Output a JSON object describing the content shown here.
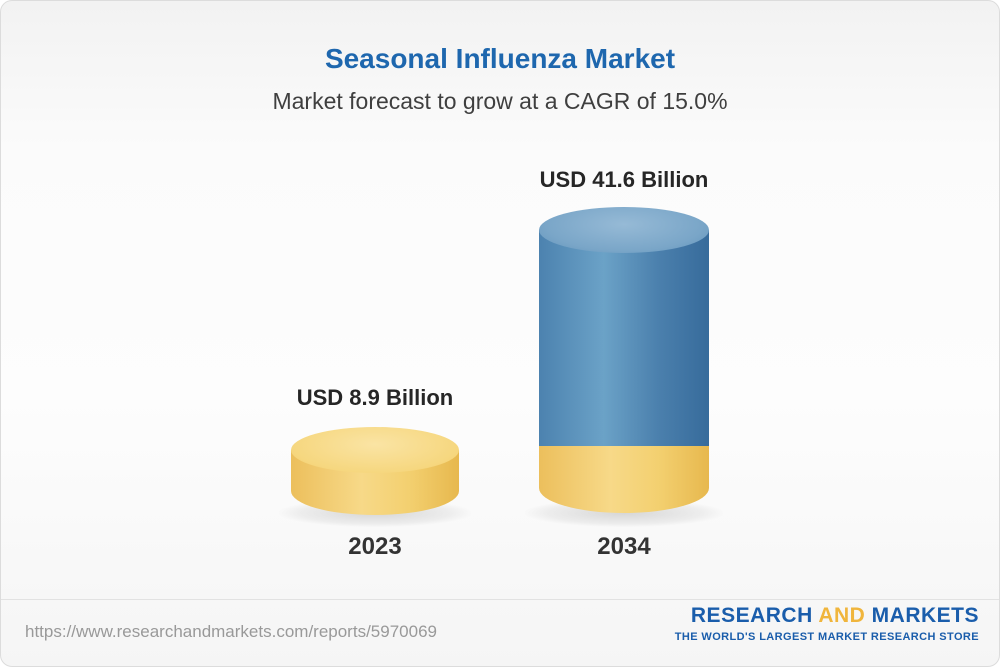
{
  "header": {
    "title": "Seasonal Influenza Market",
    "subtitle": "Market forecast to grow at a CAGR of 15.0%"
  },
  "chart_data": {
    "type": "bar",
    "title": "Seasonal Influenza Market",
    "subtitle": "Market forecast to grow at a CAGR of 15.0%",
    "unit": "USD Billion",
    "categories": [
      "2023",
      "2034"
    ],
    "values": [
      8.9,
      41.6
    ],
    "value_labels": [
      "USD 8.9 Billion",
      "USD 41.6 Billion"
    ],
    "cagr_percent": 15.0,
    "legend_position": "none",
    "grid": false,
    "colors": {
      "bar_2023": "#f3cf6e",
      "bar_2034_body": "#4c82af",
      "bar_2034_base": "#f3cf6e",
      "title_blue": "#1e67ae",
      "label_dark": "#262626"
    }
  },
  "bars": [
    {
      "year": "2023",
      "value_label": "USD 8.9 Billion"
    },
    {
      "year": "2034",
      "value_label": "USD 41.6 Billion"
    }
  ],
  "footer": {
    "url": "https://www.researchandmarkets.com/reports/5970069",
    "logo": {
      "word1": "RESEARCH",
      "word2": "AND",
      "word3": "MARKETS",
      "tagline": "THE WORLD'S LARGEST MARKET RESEARCH STORE"
    }
  }
}
